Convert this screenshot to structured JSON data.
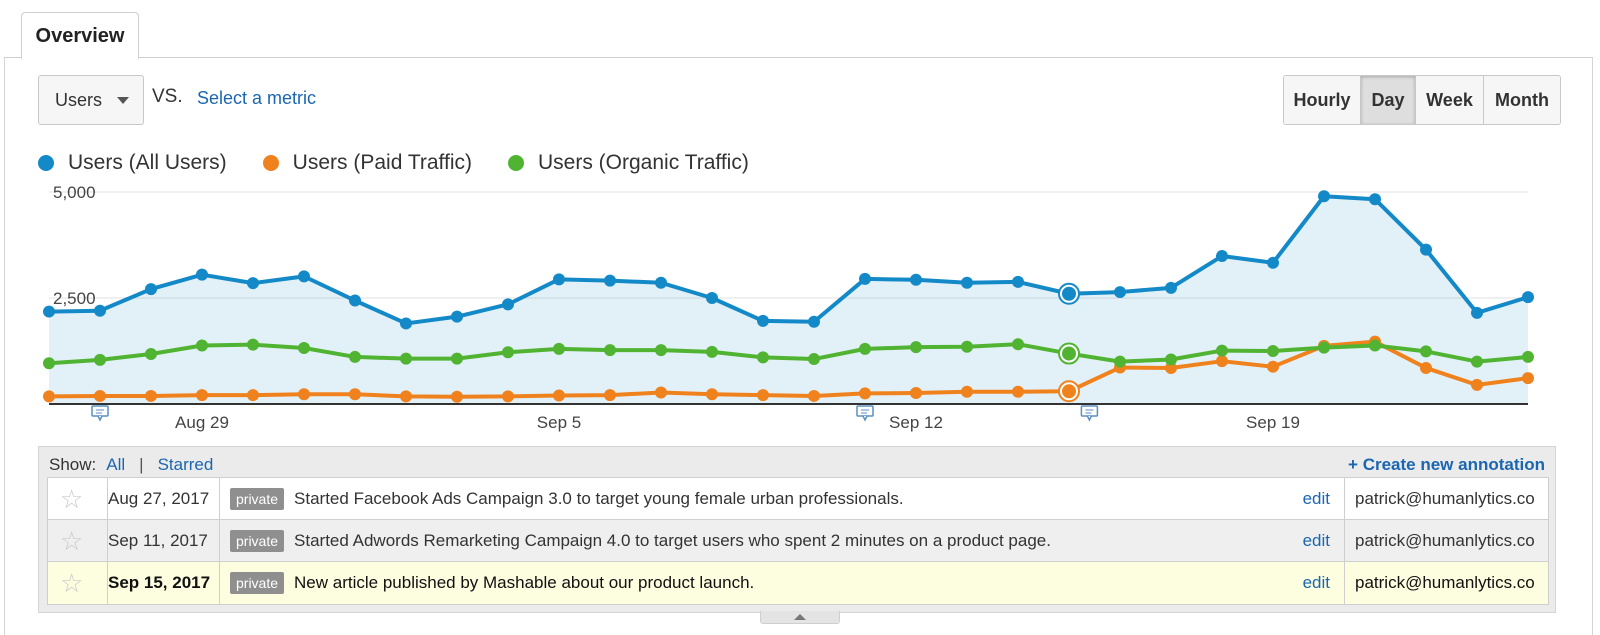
{
  "tab": {
    "label": "Overview"
  },
  "metric_select": {
    "value": "Users"
  },
  "vs_label": "VS.",
  "select_metric_label": "Select a metric",
  "period_buttons": [
    {
      "label": "Hourly",
      "active": false
    },
    {
      "label": "Day",
      "active": true
    },
    {
      "label": "Week",
      "active": false
    },
    {
      "label": "Month",
      "active": false
    }
  ],
  "colors": {
    "all_users": "#1489c8",
    "paid": "#f0821e",
    "organic": "#50b432",
    "link": "#1a66b0"
  },
  "chart_data": {
    "type": "line",
    "x": [
      "Aug 26",
      "Aug 27",
      "Aug 28",
      "Aug 29",
      "Aug 30",
      "Aug 31",
      "Sep 1",
      "Sep 2",
      "Sep 3",
      "Sep 4",
      "Sep 5",
      "Sep 6",
      "Sep 7",
      "Sep 8",
      "Sep 9",
      "Sep 10",
      "Sep 11",
      "Sep 12",
      "Sep 13",
      "Sep 14",
      "Sep 15",
      "Sep 16",
      "Sep 17",
      "Sep 18",
      "Sep 19",
      "Sep 20",
      "Sep 21",
      "Sep 22",
      "Sep 23",
      "Sep 24"
    ],
    "series": [
      {
        "name": "Users (All Users)",
        "color": "#1489c8",
        "area": true,
        "values": [
          2180,
          2200,
          2710,
          3050,
          2850,
          3010,
          2440,
          1900,
          2060,
          2350,
          2940,
          2910,
          2860,
          2500,
          1960,
          1940,
          2950,
          2930,
          2860,
          2880,
          2600,
          2640,
          2740,
          3490,
          3330,
          4900,
          4830,
          3640,
          2150,
          2520
        ]
      },
      {
        "name": "Users (Paid Traffic)",
        "color": "#f0821e",
        "area": false,
        "values": [
          180,
          190,
          190,
          210,
          210,
          230,
          230,
          180,
          170,
          180,
          200,
          210,
          270,
          230,
          210,
          190,
          250,
          260,
          290,
          290,
          300,
          860,
          850,
          1010,
          880,
          1370,
          1470,
          850,
          450,
          610
        ]
      },
      {
        "name": "Users (Organic Traffic)",
        "color": "#50b432",
        "area": false,
        "values": [
          960,
          1040,
          1180,
          1380,
          1400,
          1320,
          1110,
          1070,
          1070,
          1220,
          1300,
          1270,
          1270,
          1230,
          1100,
          1060,
          1300,
          1340,
          1350,
          1410,
          1190,
          1000,
          1050,
          1260,
          1250,
          1330,
          1380,
          1240,
          1000,
          1110
        ]
      }
    ],
    "highlight_index": 20,
    "y_ticks": [
      {
        "value": 2500,
        "label": "2,500"
      },
      {
        "value": 5000,
        "label": "5,000"
      }
    ],
    "ylim": [
      0,
      5000
    ],
    "x_tick_labels": [
      {
        "index": 3,
        "label": "Aug 29"
      },
      {
        "index": 10,
        "label": "Sep 5"
      },
      {
        "index": 17,
        "label": "Sep 12"
      },
      {
        "index": 24,
        "label": "Sep 19"
      }
    ],
    "annotation_markers": [
      {
        "index": 1
      },
      {
        "index": 16
      },
      {
        "index": 20.4
      }
    ],
    "grid": true,
    "legend": "top-left"
  },
  "annotations": {
    "show_label": "Show:",
    "filter_all": "All",
    "filter_sep": "|",
    "filter_starred": "Starred",
    "create_label": "+ Create new annotation",
    "rows": [
      {
        "date": "Aug 27, 2017",
        "badge": "private",
        "note": "Started Facebook Ads Campaign 3.0 to target young female urban professionals.",
        "edit": "edit",
        "user": "patrick@humanlytics.co"
      },
      {
        "date": "Sep 11, 2017",
        "badge": "private",
        "note": "Started Adwords Remarketing Campaign 4.0 to target users who spent 2 minutes on a product page.",
        "edit": "edit",
        "user": "patrick@humanlytics.co"
      },
      {
        "date": "Sep 15, 2017",
        "badge": "private",
        "note": "New article published by Mashable about our product launch.",
        "edit": "edit",
        "user": "patrick@humanlytics.co"
      }
    ]
  }
}
